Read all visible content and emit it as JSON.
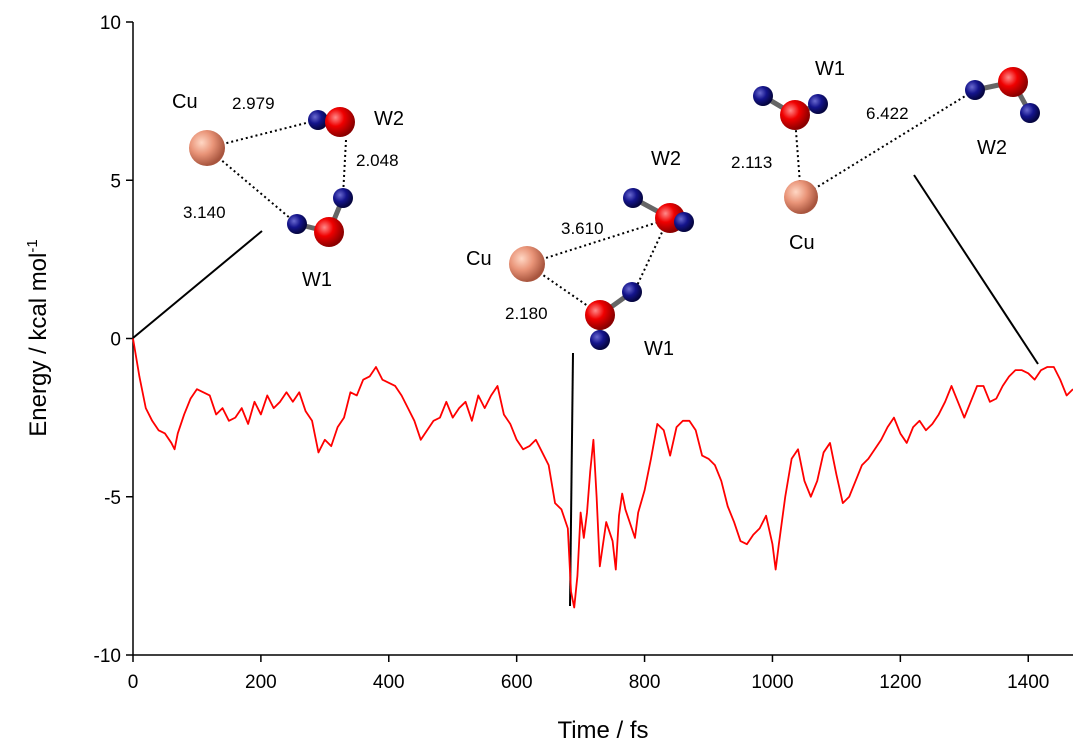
{
  "chart_data": {
    "type": "line",
    "xlabel": "Time / fs",
    "ylabel": {
      "text": "Energy / kcal mol",
      "superscript": "-1"
    },
    "xlim": [
      0,
      1470
    ],
    "ylim": [
      -10,
      10
    ],
    "xticks": [
      0,
      200,
      400,
      600,
      800,
      1000,
      1200,
      1400
    ],
    "yticks": [
      -10,
      -5,
      0,
      5,
      10
    ],
    "annotations": [
      "Cu",
      "2.979",
      "W2",
      "2.048",
      "3.140",
      "W1",
      "W2",
      "3.610",
      "Cu",
      "2.180",
      "W1",
      "W1",
      "6.422",
      "W2",
      "2.113",
      "Cu"
    ],
    "x": [
      0,
      10,
      20,
      30,
      40,
      50,
      60,
      65,
      70,
      80,
      90,
      100,
      110,
      120,
      130,
      140,
      150,
      160,
      170,
      180,
      190,
      200,
      210,
      220,
      230,
      240,
      250,
      260,
      270,
      280,
      290,
      300,
      310,
      320,
      330,
      340,
      350,
      360,
      370,
      380,
      390,
      400,
      410,
      420,
      430,
      440,
      450,
      460,
      470,
      480,
      490,
      500,
      510,
      520,
      530,
      540,
      550,
      560,
      570,
      580,
      590,
      600,
      610,
      620,
      630,
      640,
      650,
      660,
      670,
      680,
      685,
      690,
      695,
      700,
      705,
      710,
      715,
      720,
      725,
      730,
      740,
      750,
      755,
      760,
      765,
      770,
      780,
      785,
      790,
      800,
      810,
      820,
      830,
      840,
      850,
      860,
      870,
      880,
      890,
      900,
      910,
      920,
      930,
      940,
      950,
      960,
      970,
      980,
      990,
      1000,
      1005,
      1010,
      1020,
      1030,
      1040,
      1050,
      1060,
      1070,
      1080,
      1090,
      1100,
      1110,
      1120,
      1130,
      1140,
      1150,
      1160,
      1170,
      1180,
      1190,
      1200,
      1210,
      1220,
      1230,
      1240,
      1250,
      1260,
      1270,
      1280,
      1290,
      1300,
      1310,
      1320,
      1330,
      1340,
      1350,
      1360,
      1370,
      1380,
      1390,
      1400,
      1410,
      1420,
      1430,
      1440,
      1450,
      1460,
      1470
    ],
    "series": [
      {
        "color": "#ff0000",
        "values": [
          0,
          -1.2,
          -2.2,
          -2.6,
          -2.9,
          -3.0,
          -3.3,
          -3.5,
          -3.0,
          -2.4,
          -1.9,
          -1.6,
          -1.7,
          -1.8,
          -2.4,
          -2.2,
          -2.6,
          -2.5,
          -2.2,
          -2.7,
          -2.0,
          -2.4,
          -1.8,
          -2.2,
          -2.0,
          -1.7,
          -2.0,
          -1.7,
          -2.3,
          -2.6,
          -3.6,
          -3.2,
          -3.4,
          -2.8,
          -2.5,
          -1.7,
          -1.8,
          -1.3,
          -1.2,
          -0.9,
          -1.3,
          -1.4,
          -1.5,
          -1.8,
          -2.2,
          -2.6,
          -3.2,
          -2.9,
          -2.6,
          -2.5,
          -2.0,
          -2.5,
          -2.2,
          -2.0,
          -2.6,
          -1.8,
          -2.2,
          -1.8,
          -1.5,
          -2.4,
          -2.7,
          -3.2,
          -3.5,
          -3.4,
          -3.2,
          -3.6,
          -4.0,
          -5.2,
          -5.4,
          -6.0,
          -8.0,
          -8.5,
          -7.5,
          -5.5,
          -6.3,
          -5.5,
          -4.2,
          -3.2,
          -5.0,
          -7.2,
          -5.8,
          -6.4,
          -7.3,
          -5.6,
          -4.9,
          -5.4,
          -6.0,
          -6.3,
          -5.5,
          -4.8,
          -3.8,
          -2.7,
          -2.9,
          -3.7,
          -2.8,
          -2.6,
          -2.6,
          -2.9,
          -3.7,
          -3.8,
          -4.0,
          -4.5,
          -5.3,
          -5.8,
          -6.4,
          -6.5,
          -6.2,
          -6.0,
          -5.6,
          -6.5,
          -7.3,
          -6.5,
          -5.0,
          -3.8,
          -3.5,
          -4.5,
          -5.0,
          -4.5,
          -3.6,
          -3.3,
          -4.3,
          -5.2,
          -5.0,
          -4.5,
          -4.0,
          -3.8,
          -3.5,
          -3.2,
          -2.8,
          -2.5,
          -3.0,
          -3.3,
          -2.8,
          -2.6,
          -2.9,
          -2.7,
          -2.4,
          -2.0,
          -1.5,
          -2.0,
          -2.5,
          -2.0,
          -1.5,
          -1.5,
          -2.0,
          -1.9,
          -1.5,
          -1.2,
          -1.0,
          -1.0,
          -1.1,
          -1.3,
          -1.0,
          -0.9,
          -0.9,
          -1.3,
          -1.8,
          -1.6
        ]
      }
    ]
  }
}
